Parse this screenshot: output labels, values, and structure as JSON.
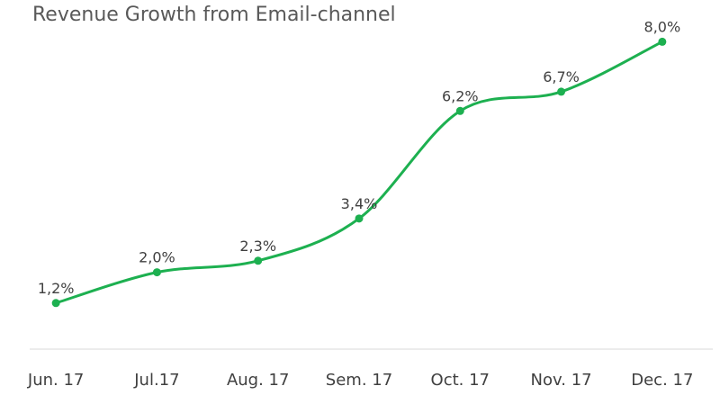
{
  "chart_data": {
    "type": "line",
    "title": "Revenue Growth from Email-channel",
    "categories": [
      "Jun. 17",
      "Jul.17",
      "Aug. 17",
      "Sem. 17",
      "Oct. 17",
      "Nov. 17",
      "Dec. 17"
    ],
    "values": [
      1.2,
      2.0,
      2.3,
      3.4,
      6.2,
      6.7,
      8.0
    ],
    "data_labels": [
      "1,2%",
      "2,0%",
      "2,3%",
      "3,4%",
      "6,2%",
      "6,7%",
      "8,0%"
    ],
    "xlabel": "",
    "ylabel": "",
    "ylim": [
      0,
      8.9
    ],
    "grid": false,
    "smooth": true,
    "line_color": "#1DB050",
    "axis_color": "#D9D9D9"
  }
}
